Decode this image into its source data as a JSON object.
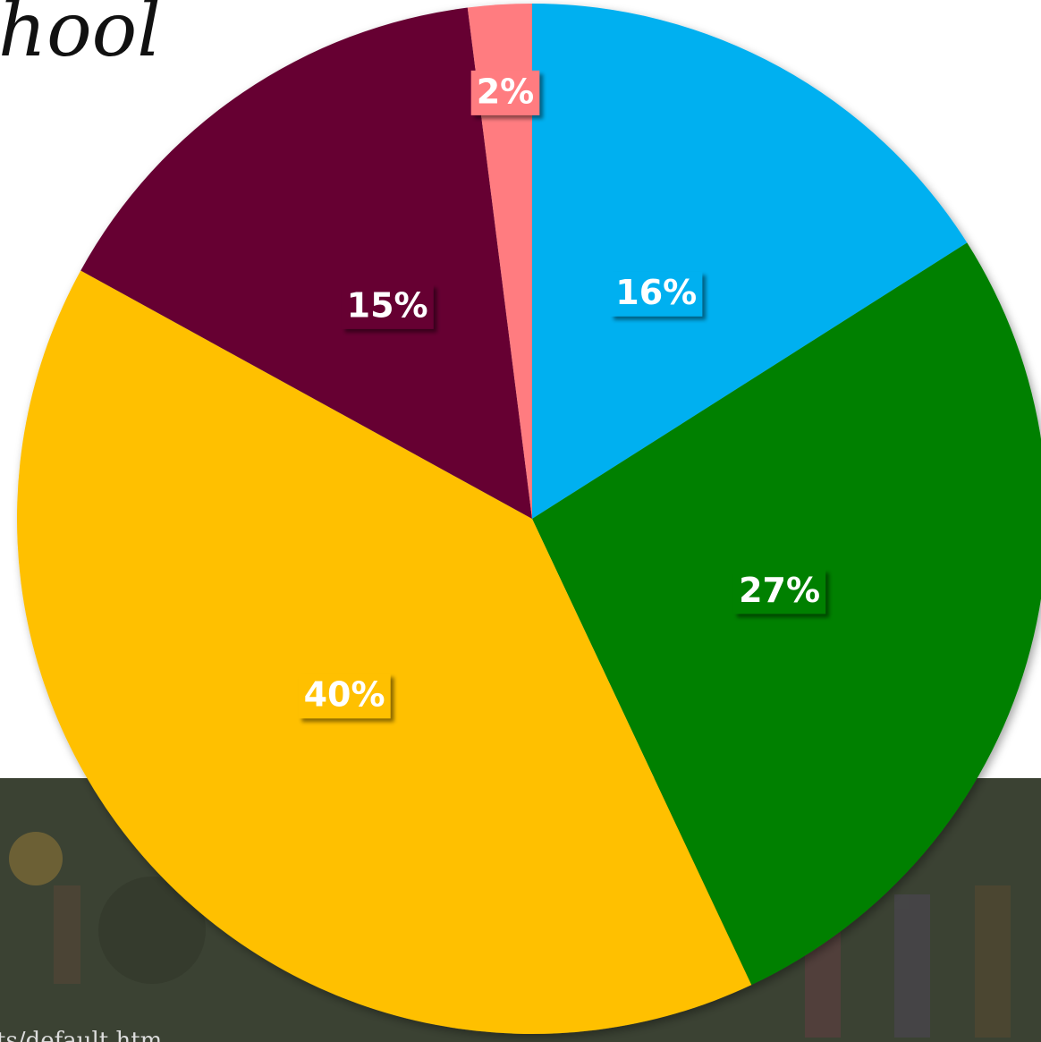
{
  "header": {
    "title": "hool"
  },
  "footer": {
    "url": "ts/default.htm"
  },
  "chart_data": {
    "type": "pie",
    "values": [
      16,
      27,
      40,
      15,
      2
    ],
    "value_labels": [
      "16%",
      "27%",
      "40%",
      "15%",
      "2%"
    ],
    "colors": [
      "#00b0f0",
      "#008000",
      "#ffc000",
      "#660033",
      "#ff7c80"
    ]
  }
}
